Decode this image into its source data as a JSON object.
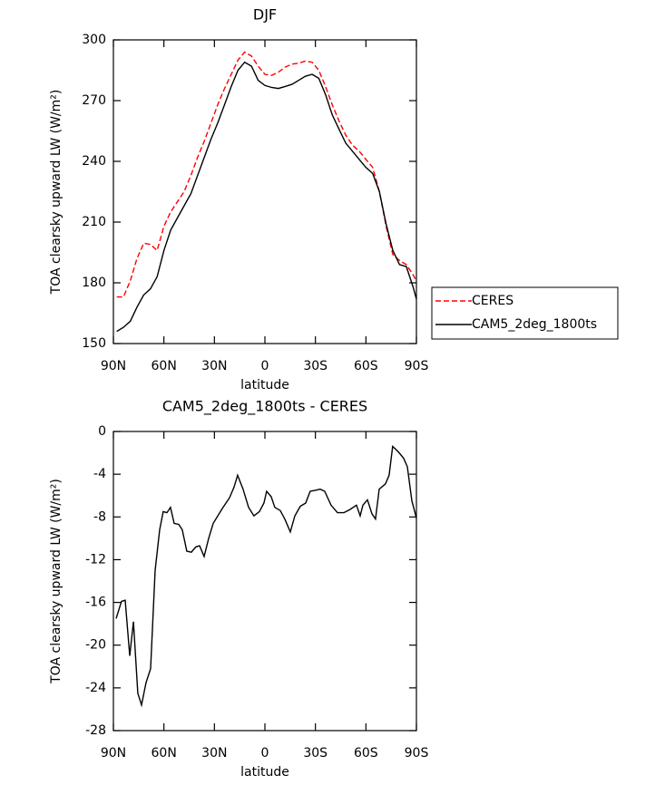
{
  "chart_data": [
    {
      "type": "line",
      "title": "DJF",
      "xlabel": "latitude",
      "ylabel": "TOA clearsky upward LW (W/m²)",
      "x": [
        88,
        84,
        80,
        76,
        72,
        68,
        64,
        60,
        56,
        52,
        48,
        44,
        40,
        36,
        32,
        28,
        24,
        20,
        16,
        12,
        8,
        4,
        0,
        -4,
        -8,
        -12,
        -16,
        -20,
        -24,
        -28,
        -32,
        -36,
        -40,
        -44,
        -48,
        -52,
        -56,
        -60,
        -64,
        -68,
        -72,
        -76,
        -80,
        -84,
        -88,
        -90
      ],
      "series": [
        {
          "name": "CERES",
          "color": "#ff0000",
          "dash": true,
          "values": [
            173,
            173,
            181,
            192,
            199.5,
            199,
            196,
            208,
            215,
            220,
            225,
            233,
            242,
            250,
            259,
            268,
            276,
            283,
            290,
            294,
            292,
            287,
            283,
            282.5,
            284,
            286.5,
            288,
            288.5,
            289.5,
            289,
            285,
            277,
            268,
            260,
            253,
            248,
            245,
            241,
            237,
            225,
            208,
            194,
            191,
            189,
            184,
            181
          ]
        },
        {
          "name": "CAM5_2deg_1800ts",
          "color": "#000000",
          "dash": false,
          "values": [
            156,
            158,
            161,
            168,
            174,
            177,
            183,
            196,
            206,
            212,
            218,
            224,
            233,
            242,
            251,
            259,
            268,
            277,
            285,
            289,
            287,
            280,
            277.5,
            276.5,
            276,
            277,
            278,
            280,
            282,
            283,
            281,
            273,
            263,
            256,
            249,
            245,
            241,
            237,
            234,
            225,
            209,
            196,
            189,
            188,
            178,
            172
          ]
        }
      ],
      "xlim": [
        90,
        -90
      ],
      "xticks": [
        {
          "value": 90,
          "label": "90N"
        },
        {
          "value": 60,
          "label": "60N"
        },
        {
          "value": 30,
          "label": "30N"
        },
        0,
        {
          "value": -30,
          "label": "30S"
        },
        {
          "value": -60,
          "label": "60S"
        },
        {
          "value": -90,
          "label": "90S"
        }
      ],
      "ylim": [
        150,
        300
      ],
      "yticks": [
        150,
        180,
        210,
        240,
        270,
        300
      ],
      "legend": "right"
    },
    {
      "type": "line",
      "title": "CAM5_2deg_1800ts - CERES",
      "xlabel": "latitude",
      "ylabel": "TOA clearsky upward LW (W/m²)",
      "x": [
        88.4,
        85.2,
        83,
        80.3,
        78.1,
        75.5,
        73.3,
        70.6,
        67.9,
        65.2,
        62.5,
        60.4,
        58.2,
        56.1,
        53.9,
        51.2,
        49.1,
        46.4,
        43.7,
        41,
        38.8,
        36.1,
        33.4,
        30.7,
        25.3,
        21,
        18.3,
        16.2,
        13,
        9.7,
        6.5,
        3.3,
        0.6,
        -1,
        -3.7,
        -5.9,
        -9.1,
        -11.8,
        -15.1,
        -17.8,
        -21,
        -24.2,
        -26.9,
        -30.2,
        -32.8,
        -35.5,
        -39.3,
        -43.1,
        -46.9,
        -50.6,
        -54.4,
        -56.6,
        -58.2,
        -60.9,
        -63.6,
        -65.7,
        -67.9,
        -71.6,
        -73.8,
        -75.9,
        -79.2,
        -82.4,
        -84.6,
        -87.3,
        -90
      ],
      "values": [
        -17.5,
        -15.9,
        -15.8,
        -21,
        -17.8,
        -24.5,
        -25.6,
        -23.5,
        -22.2,
        -13,
        -9.2,
        -7.5,
        -7.6,
        -7.1,
        -8.6,
        -8.7,
        -9.2,
        -11.2,
        -11.3,
        -10.8,
        -10.7,
        -11.7,
        -10,
        -8.6,
        -7.2,
        -6.2,
        -5.2,
        -4.1,
        -5.4,
        -7.1,
        -7.9,
        -7.5,
        -6.7,
        -5.6,
        -6.1,
        -7.1,
        -7.4,
        -8.2,
        -9.4,
        -7.9,
        -7,
        -6.7,
        -5.6,
        -5.5,
        -5.4,
        -5.6,
        -6.9,
        -7.6,
        -7.6,
        -7.3,
        -6.9,
        -7.9,
        -6.9,
        -6.4,
        -7.7,
        -8.2,
        -5.4,
        -4.9,
        -4.1,
        -1.4,
        -1.9,
        -2.5,
        -3.3,
        -6.5,
        -8.1
      ],
      "color": "#000000",
      "xlim": [
        90,
        -90
      ],
      "xticks": [
        {
          "value": 90,
          "label": "90N"
        },
        {
          "value": 60,
          "label": "60N"
        },
        {
          "value": 30,
          "label": "30N"
        },
        0,
        {
          "value": -30,
          "label": "30S"
        },
        {
          "value": -60,
          "label": "60S"
        },
        {
          "value": -90,
          "label": "90S"
        }
      ],
      "ylim": [
        -28,
        0
      ],
      "yticks": [
        -28,
        -24,
        -20,
        -16,
        -12,
        -8,
        -4,
        0
      ]
    }
  ]
}
